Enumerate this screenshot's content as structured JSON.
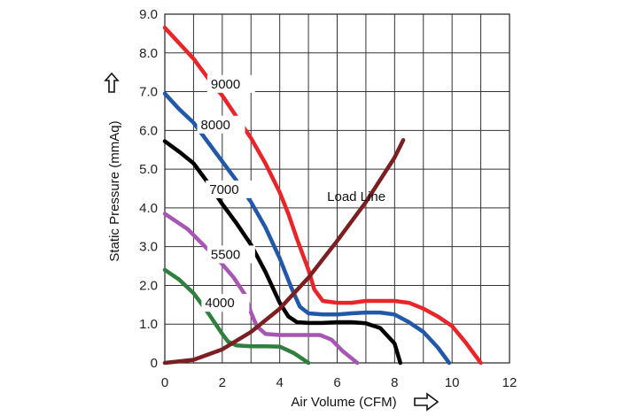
{
  "chart_data": {
    "type": "line",
    "xlabel": "Air Volume (CFM)",
    "ylabel": "Static Pressure (mmAq)",
    "xlim": [
      0,
      12
    ],
    "ylim": [
      0,
      9
    ],
    "x_ticks": [
      "0",
      "2",
      "4",
      "6",
      "8",
      "10",
      "12"
    ],
    "y_ticks": [
      "0",
      "1.0",
      "2.0",
      "3.0",
      "4.0",
      "5.0",
      "6.0",
      "7.0",
      "8.0",
      "9.0"
    ],
    "grid": true,
    "series": [
      {
        "name": "9000",
        "color": "#e8262a",
        "x": [
          0,
          0.5,
          1,
          1.5,
          2,
          2.5,
          3,
          3.5,
          4,
          4.3,
          4.6,
          5,
          5.2,
          5.5,
          6,
          6.5,
          7,
          7.5,
          8,
          8.5,
          9,
          9.5,
          10,
          10.5,
          11
        ],
        "y": [
          8.65,
          8.25,
          7.85,
          7.35,
          6.9,
          6.35,
          5.8,
          5.15,
          4.4,
          3.85,
          3.2,
          2.4,
          1.9,
          1.6,
          1.55,
          1.55,
          1.6,
          1.6,
          1.6,
          1.55,
          1.4,
          1.2,
          0.95,
          0.5,
          0
        ]
      },
      {
        "name": "8000",
        "color": "#2158a8",
        "x": [
          0,
          0.5,
          1,
          1.5,
          2,
          2.5,
          3,
          3.5,
          4,
          4.4,
          4.7,
          5,
          5.5,
          6,
          6.5,
          7,
          7.5,
          8,
          8.5,
          9,
          9.5,
          9.9
        ],
        "y": [
          6.95,
          6.55,
          6.2,
          5.7,
          5.2,
          4.7,
          4.15,
          3.5,
          2.7,
          1.95,
          1.45,
          1.28,
          1.25,
          1.25,
          1.28,
          1.3,
          1.3,
          1.25,
          1.05,
          0.8,
          0.4,
          0
        ]
      },
      {
        "name": "7000",
        "color": "#000000",
        "x": [
          0,
          0.5,
          1,
          1.5,
          2,
          2.5,
          3,
          3.5,
          4,
          4.3,
          4.6,
          5,
          5.5,
          6,
          6.5,
          7,
          7.5,
          8,
          8.2
        ],
        "y": [
          5.72,
          5.45,
          5.15,
          4.65,
          4.1,
          3.6,
          3.05,
          2.35,
          1.55,
          1.2,
          1.05,
          1.03,
          1.03,
          1.05,
          1.05,
          1.02,
          0.9,
          0.5,
          0
        ]
      },
      {
        "name": "5500",
        "color": "#a856b3",
        "x": [
          0,
          0.4,
          0.8,
          1.2,
          1.6,
          2,
          2.4,
          2.8,
          3,
          3.2,
          3.5,
          4,
          4.5,
          5,
          5.4,
          5.8,
          6.2,
          6.7
        ],
        "y": [
          3.85,
          3.65,
          3.45,
          3.15,
          2.85,
          2.55,
          2.2,
          1.75,
          1.3,
          0.95,
          0.75,
          0.72,
          0.72,
          0.72,
          0.72,
          0.6,
          0.3,
          0
        ]
      },
      {
        "name": "4000",
        "color": "#2f7f3e",
        "x": [
          0,
          0.5,
          1,
          1.5,
          2,
          2.2,
          2.5,
          3,
          3.5,
          4,
          4.5,
          5
        ],
        "y": [
          2.4,
          2.15,
          1.8,
          1.3,
          0.75,
          0.55,
          0.45,
          0.43,
          0.43,
          0.42,
          0.25,
          0
        ]
      },
      {
        "name": "Load Line",
        "color": "#7b1f22",
        "x": [
          0,
          1,
          2,
          3,
          4,
          5,
          6,
          7,
          8,
          8.3
        ],
        "y": [
          0,
          0.08,
          0.35,
          0.8,
          1.4,
          2.2,
          3.15,
          4.15,
          5.3,
          5.75
        ]
      }
    ]
  }
}
